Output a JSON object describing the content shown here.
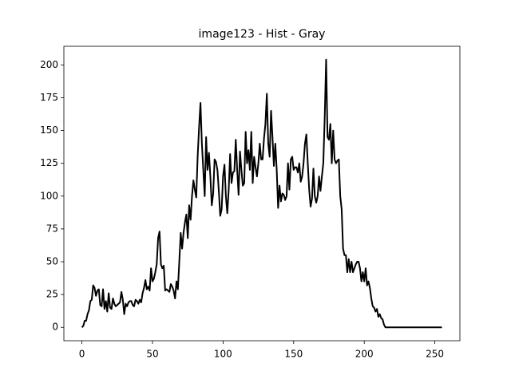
{
  "chart_data": {
    "type": "line",
    "title": "image123 - Hist - Gray",
    "x": [
      0,
      1,
      2,
      3,
      4,
      5,
      6,
      7,
      8,
      9,
      10,
      11,
      12,
      13,
      14,
      15,
      16,
      17,
      18,
      19,
      20,
      21,
      22,
      23,
      24,
      25,
      26,
      27,
      28,
      29,
      30,
      31,
      32,
      33,
      34,
      35,
      36,
      37,
      38,
      39,
      40,
      41,
      42,
      43,
      44,
      45,
      46,
      47,
      48,
      49,
      50,
      51,
      52,
      53,
      54,
      55,
      56,
      57,
      58,
      59,
      60,
      61,
      62,
      63,
      64,
      65,
      66,
      67,
      68,
      69,
      70,
      71,
      72,
      73,
      74,
      75,
      76,
      77,
      78,
      79,
      80,
      81,
      82,
      83,
      84,
      85,
      86,
      87,
      88,
      89,
      90,
      91,
      92,
      93,
      94,
      95,
      96,
      97,
      98,
      99,
      100,
      101,
      102,
      103,
      104,
      105,
      106,
      107,
      108,
      109,
      110,
      111,
      112,
      113,
      114,
      115,
      116,
      117,
      118,
      119,
      120,
      121,
      122,
      123,
      124,
      125,
      126,
      127,
      128,
      129,
      130,
      131,
      132,
      133,
      134,
      135,
      136,
      137,
      138,
      139,
      140,
      141,
      142,
      143,
      144,
      145,
      146,
      147,
      148,
      149,
      150,
      151,
      152,
      153,
      154,
      155,
      156,
      157,
      158,
      159,
      160,
      161,
      162,
      163,
      164,
      165,
      166,
      167,
      168,
      169,
      170,
      171,
      172,
      173,
      174,
      175,
      176,
      177,
      178,
      179,
      180,
      181,
      182,
      183,
      184,
      185,
      186,
      187,
      188,
      189,
      190,
      191,
      192,
      193,
      194,
      195,
      196,
      197,
      198,
      199,
      200,
      201,
      202,
      203,
      204,
      205,
      206,
      207,
      208,
      209,
      210,
      211,
      212,
      213,
      214,
      215,
      216,
      217,
      218,
      219,
      220,
      221,
      222,
      223,
      224,
      225,
      226,
      227,
      228,
      229,
      230,
      231,
      232,
      233,
      234,
      235,
      236,
      237,
      238,
      239,
      240,
      241,
      242,
      243,
      244,
      245,
      246,
      247,
      248,
      249,
      250,
      251,
      252,
      253,
      254,
      255
    ],
    "series": [
      {
        "color": "#000000",
        "values": [
          0,
          1,
          5,
          5,
          10,
          13,
          20,
          21,
          32,
          30,
          24,
          28,
          29,
          17,
          16,
          29,
          14,
          20,
          12,
          26,
          15,
          14,
          22,
          18,
          16,
          17,
          18,
          19,
          27,
          21,
          10,
          18,
          16,
          19,
          20,
          20,
          17,
          16,
          21,
          20,
          18,
          21,
          19,
          26,
          30,
          36,
          29,
          31,
          28,
          45,
          35,
          37,
          42,
          48,
          68,
          73,
          48,
          45,
          47,
          28,
          29,
          28,
          27,
          33,
          31,
          28,
          22,
          35,
          29,
          50,
          72,
          60,
          72,
          80,
          86,
          68,
          93,
          82,
          100,
          112,
          105,
          99,
          130,
          152,
          171,
          140,
          120,
          100,
          145,
          120,
          133,
          115,
          93,
          102,
          128,
          126,
          120,
          104,
          85,
          90,
          115,
          124,
          100,
          87,
          105,
          132,
          110,
          118,
          119,
          143,
          120,
          101,
          134,
          120,
          108,
          110,
          149,
          125,
          135,
          120,
          149,
          110,
          130,
          122,
          115,
          125,
          140,
          128,
          128,
          144,
          155,
          178,
          140,
          130,
          165,
          145,
          123,
          140,
          120,
          91,
          108,
          96,
          102,
          101,
          97,
          100,
          125,
          105,
          128,
          130,
          120,
          122,
          122,
          118,
          125,
          111,
          115,
          125,
          140,
          147,
          125,
          105,
          92,
          98,
          121,
          100,
          95,
          100,
          115,
          104,
          115,
          125,
          160,
          204,
          145,
          143,
          155,
          125,
          150,
          128,
          125,
          127,
          128,
          100,
          90,
          60,
          55,
          55,
          42,
          52,
          42,
          50,
          42,
          45,
          48,
          50,
          50,
          45,
          35,
          42,
          35,
          45,
          32,
          35,
          30,
          22,
          16,
          15,
          12,
          14,
          8,
          10,
          7,
          6,
          2,
          0,
          0,
          0,
          0,
          0,
          0,
          0,
          0,
          0,
          0,
          0,
          0,
          0,
          0,
          0,
          0,
          0,
          0,
          0,
          0,
          0,
          0,
          0,
          0,
          0,
          0,
          0,
          0,
          0,
          0,
          0,
          0,
          0,
          0,
          0,
          0,
          0,
          0,
          0,
          0,
          0
        ]
      }
    ],
    "xlim": [
      -12.75,
      267.75
    ],
    "ylim": [
      -10.2,
      214.2
    ],
    "xticks": [
      0,
      50,
      100,
      150,
      200,
      250
    ],
    "yticks": [
      0,
      25,
      50,
      75,
      100,
      125,
      150,
      175,
      200
    ],
    "grid": false
  }
}
